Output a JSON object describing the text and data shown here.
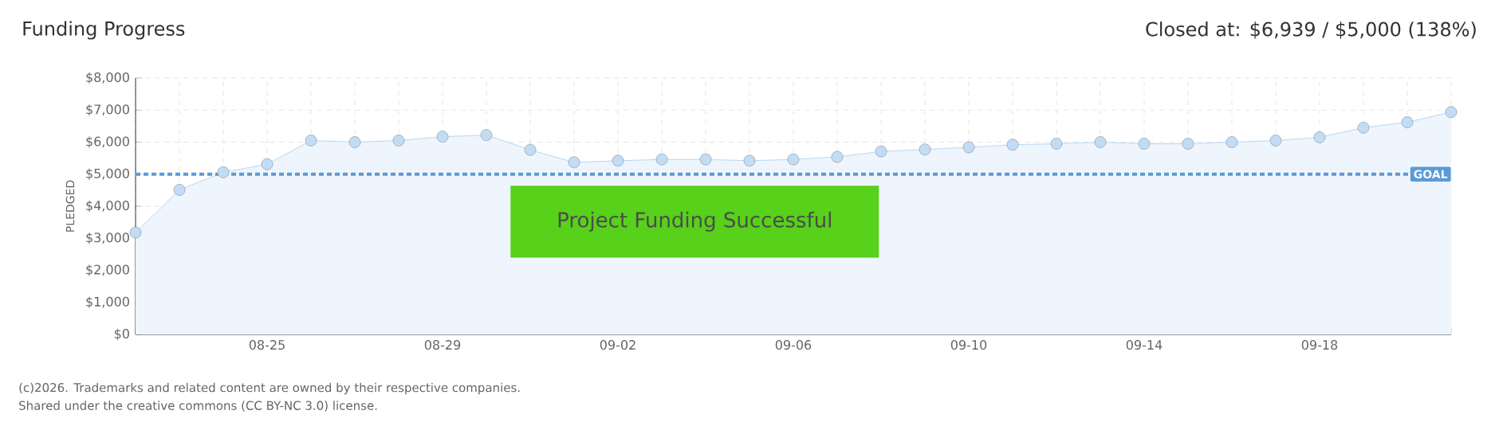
{
  "chart_data": {
    "type": "area",
    "title": "Funding Progress",
    "subtitle": "Closed at: $6,939 / $5,000 (138%)",
    "ylabel": "PLEDGED",
    "categories": [
      null,
      null,
      null,
      "08-25",
      null,
      null,
      null,
      "08-29",
      null,
      null,
      null,
      "09-02",
      null,
      null,
      null,
      "09-06",
      null,
      null,
      null,
      "09-10",
      null,
      null,
      null,
      "09-14",
      null,
      null,
      null,
      "09-18",
      null,
      null,
      null
    ],
    "series": [
      {
        "color": "#a9cdf0",
        "values": [
          3180,
          4510,
          5060,
          5310,
          6050,
          6000,
          6050,
          6170,
          6220,
          5760,
          5370,
          5420,
          5460,
          5460,
          5420,
          5460,
          5540,
          5710,
          5770,
          5840,
          5920,
          5950,
          6000,
          5950,
          5950,
          6000,
          6050,
          6150,
          6450,
          6620,
          6939
        ]
      }
    ],
    "ylim": [
      0,
      8000
    ],
    "yticks": [
      {
        "value": 0,
        "label": "$0"
      },
      {
        "value": 1000,
        "label": "$1,000"
      },
      {
        "value": 2000,
        "label": "$2,000"
      },
      {
        "value": 3000,
        "label": "$3,000"
      },
      {
        "value": 4000,
        "label": "$4,000"
      },
      {
        "value": 5000,
        "label": "$5,000"
      },
      {
        "value": 6000,
        "label": "$6,000"
      },
      {
        "value": 7000,
        "label": "$7,000"
      },
      {
        "value": 8000,
        "label": "$8,000"
      }
    ],
    "ref_lines": [
      {
        "axis": "y",
        "value": 5000,
        "label": "GOAL",
        "color": "#5b9bd5",
        "line_style": "dashed"
      }
    ],
    "annotations": [
      "Project Funding Successful",
      "(c)2026. Trademarks and related content are owned by their respective companies.",
      "Shared under the creative commons (CC BY-NC 3.0) license."
    ],
    "grid": true,
    "marker": "circle"
  }
}
